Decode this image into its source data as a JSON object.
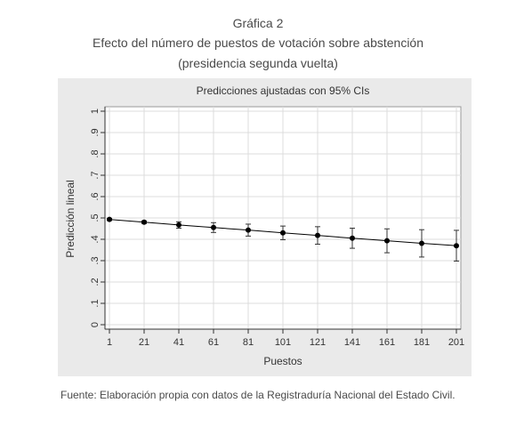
{
  "figure": {
    "number": "Gráfica 2",
    "title": "Efecto del número de puestos de votación sobre abstención",
    "subtitle": "(presidencia segunda vuelta)",
    "source": "Fuente: Elaboración propia con datos de la Registraduría Nacional del Estado Civil."
  },
  "chart_data": {
    "type": "line",
    "title": "Predicciones ajustadas con 95% CIs",
    "xlabel": "Puestos",
    "ylabel": "Predicción lineal",
    "xlim": [
      1,
      201
    ],
    "ylim": [
      0,
      1
    ],
    "x_ticks": [
      "1",
      "21",
      "41",
      "61",
      "81",
      "101",
      "121",
      "141",
      "161",
      "181",
      "201"
    ],
    "y_ticks": [
      "0",
      ".1",
      ".2",
      ".3",
      ".4",
      ".5",
      ".6",
      ".7",
      ".8",
      ".9",
      "1"
    ],
    "grid": true,
    "x": [
      1,
      21,
      41,
      61,
      81,
      101,
      121,
      141,
      161,
      181,
      201
    ],
    "y": [
      0.493,
      0.48,
      0.467,
      0.455,
      0.443,
      0.43,
      0.418,
      0.405,
      0.393,
      0.381,
      0.37
    ],
    "ci_low": [
      0.488,
      0.474,
      0.452,
      0.432,
      0.415,
      0.398,
      0.377,
      0.358,
      0.337,
      0.317,
      0.298
    ],
    "ci_high": [
      0.498,
      0.486,
      0.482,
      0.478,
      0.471,
      0.462,
      0.459,
      0.452,
      0.449,
      0.445,
      0.442
    ],
    "colors": {
      "panel_background": "#eaeaea",
      "plot_background": "#ffffff",
      "gridline": "#dcdcdc",
      "series": "#000000"
    }
  }
}
